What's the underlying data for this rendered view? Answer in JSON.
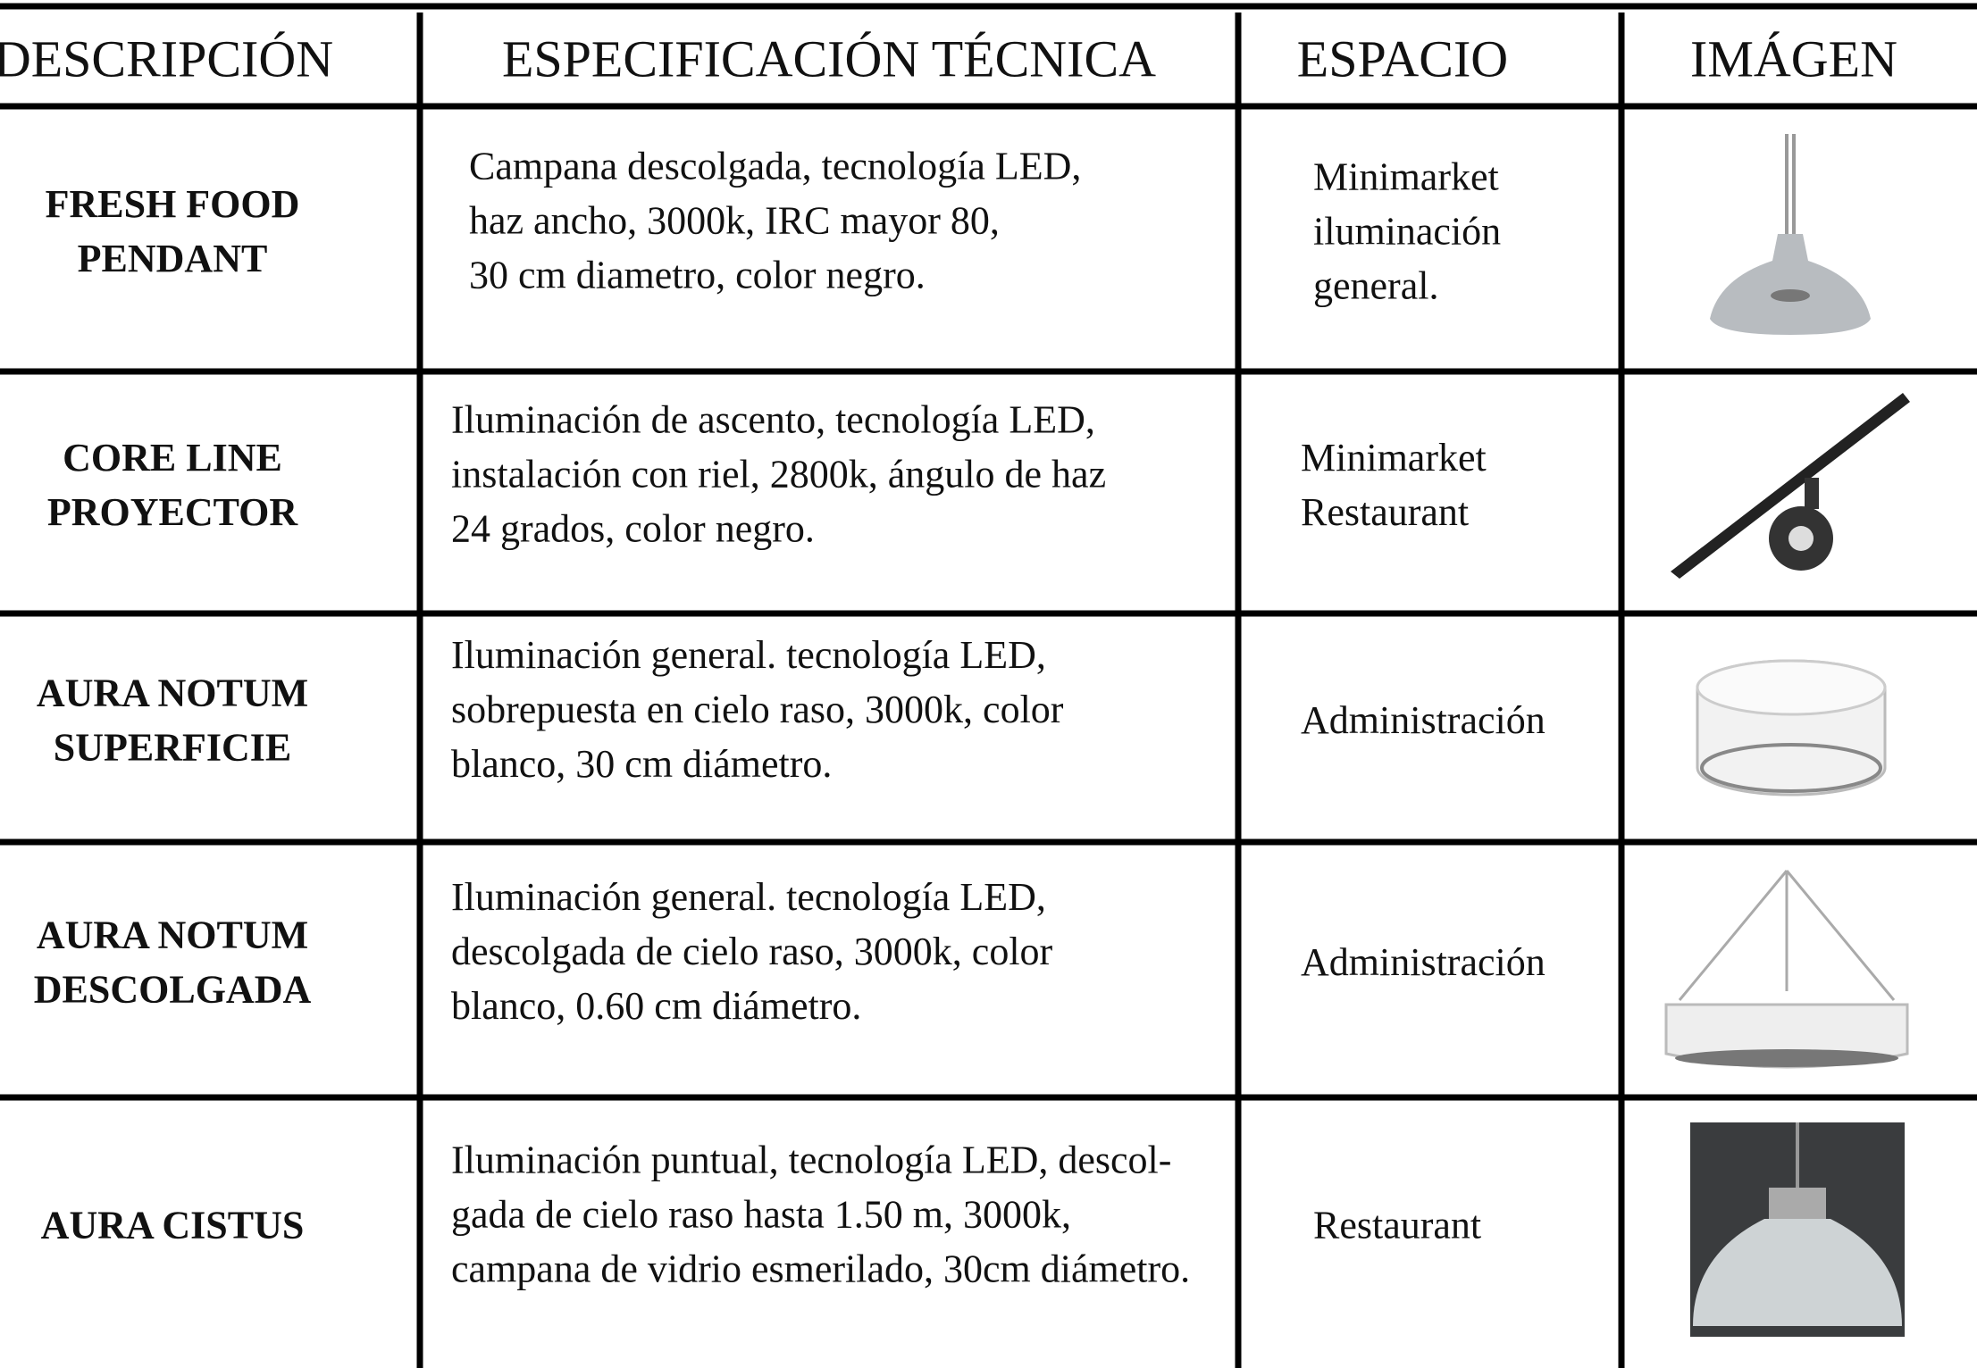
{
  "table": {
    "headers": [
      "DESCRIPCIÓN",
      "ESPECIFICACIÓN TÉCNICA",
      "ESPACIO",
      "IMÁGEN"
    ],
    "rows": [
      {
        "description": [
          "FRESH FOOD",
          "PENDANT"
        ],
        "spec": [
          "Campana descolgada, tecnología LED,",
          "haz ancho, 3000k, IRC mayor 80,",
          "30 cm diametro, color negro."
        ],
        "space": [
          "Minimarket",
          "iluminación",
          "general."
        ]
      },
      {
        "description": [
          "CORE LINE",
          "PROYECTOR"
        ],
        "spec": [
          "Iluminación de ascento, tecnología LED,",
          "instalación con riel, 2800k, ángulo de haz",
          "24 grados, color negro."
        ],
        "space": [
          "Minimarket",
          "Restaurant"
        ]
      },
      {
        "description": [
          "AURA NOTUM",
          "SUPERFICIE"
        ],
        "spec": [
          "Iluminación general. tecnología LED,",
          "sobrepuesta en cielo raso, 3000k,  color",
          "blanco, 30 cm diámetro."
        ],
        "space": [
          "Administración"
        ]
      },
      {
        "description": [
          "AURA NOTUM",
          "DESCOLGADA"
        ],
        "spec": [
          "Iluminación general. tecnología LED,",
          "descolgada de cielo raso, 3000k,  color",
          "blanco, 0.60 cm diámetro."
        ],
        "space": [
          "Administración"
        ]
      },
      {
        "description": [
          "AURA CISTUS"
        ],
        "spec": [
          "Iluminación puntual, tecnología LED, descol-",
          "gada de cielo raso hasta 1.50 m, 3000k,",
          "campana de vidrio esmerilado, 30cm diámetro."
        ],
        "space": [
          "Restaurant"
        ]
      }
    ]
  }
}
